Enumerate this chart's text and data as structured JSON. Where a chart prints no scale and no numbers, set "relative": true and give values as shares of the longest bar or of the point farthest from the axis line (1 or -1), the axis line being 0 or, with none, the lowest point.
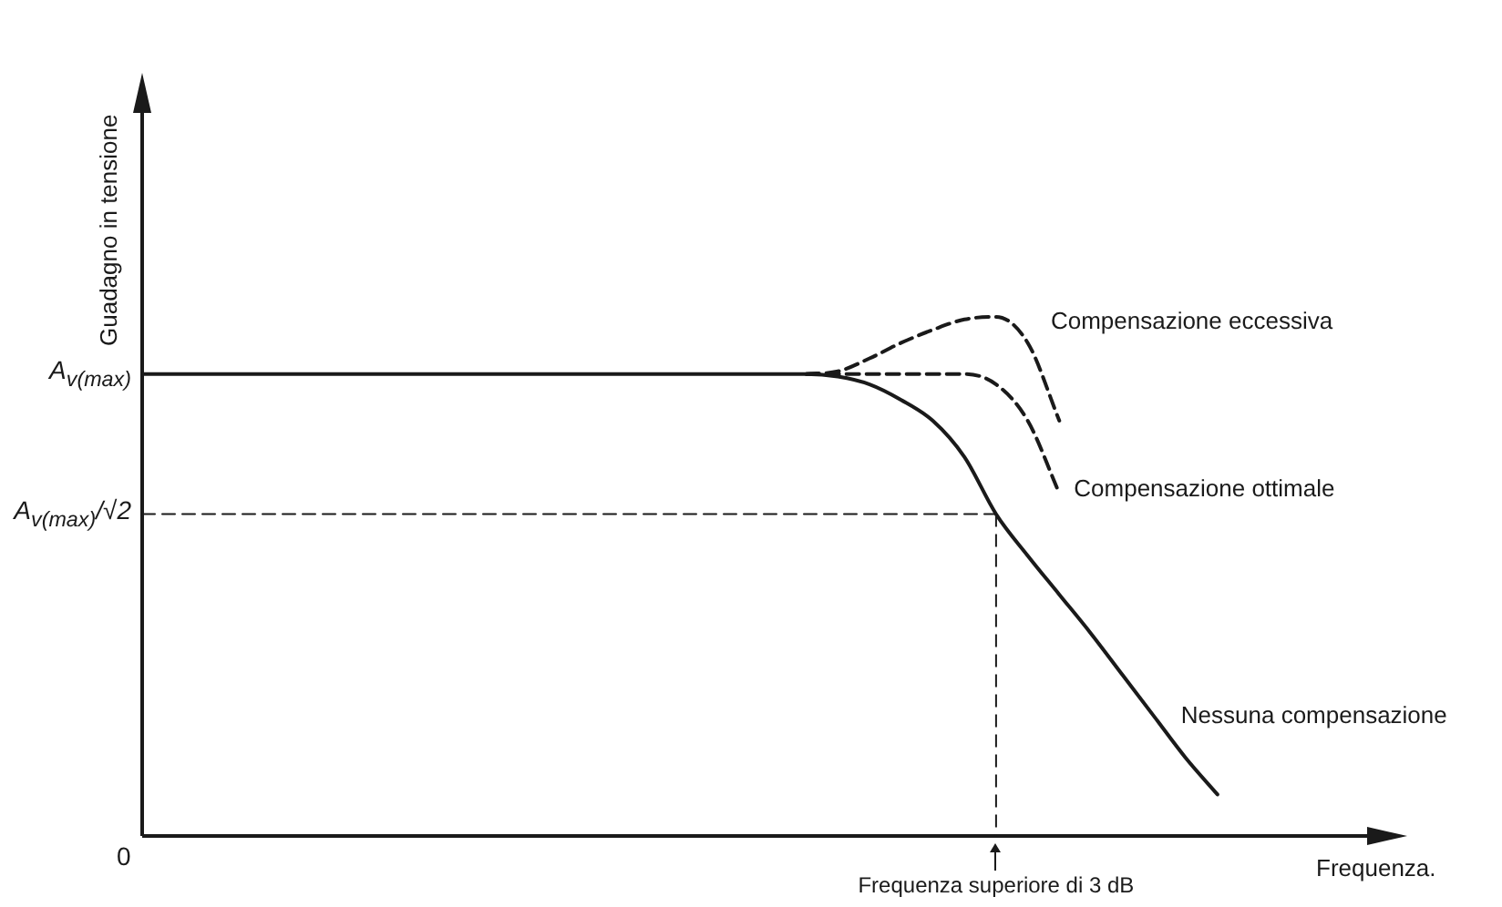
{
  "chart_data": {
    "type": "line",
    "relative": true,
    "tick_labels": false,
    "ylabel": "Guadagno in tensione",
    "xlabel": "Frequenza.",
    "legend": false,
    "marker": "none",
    "categories": [
      null,
      null,
      null,
      null,
      null,
      null,
      null,
      null,
      null,
      null,
      null,
      null,
      null,
      null,
      null,
      null,
      null,
      null,
      null,
      null,
      null,
      null,
      null,
      null,
      null,
      null,
      null,
      null,
      null,
      null,
      null,
      null,
      null,
      null,
      null,
      null,
      null,
      null,
      null,
      null,
      null
    ],
    "series": [
      {
        "name": "Nessuna compensazione",
        "color": "#1a1a1a",
        "line_style": "solid",
        "values": [
          0.89,
          0.89,
          0.89,
          0.89,
          0.89,
          0.89,
          0.89,
          0.89,
          0.89,
          0.89,
          0.89,
          0.89,
          0.89,
          0.89,
          0.89,
          0.89,
          0.89,
          0.89,
          0.89,
          0.89,
          0.89,
          0.89,
          0.885,
          0.87,
          0.84,
          0.8,
          0.73,
          0.62,
          0.54,
          0.465,
          0.39,
          0.31,
          0.23,
          0.15,
          0.08,
          null,
          null,
          null,
          null,
          null,
          null
        ]
      },
      {
        "name": "Compensazione eccessiva",
        "color": "#1a1a1a",
        "line_style": "dashed",
        "values": [
          null,
          null,
          null,
          null,
          null,
          null,
          null,
          null,
          null,
          null,
          null,
          null,
          null,
          null,
          null,
          null,
          null,
          null,
          null,
          null,
          null,
          0.89,
          0.895,
          0.92,
          0.95,
          0.975,
          0.995,
          1,
          0.95,
          0.8,
          null,
          null,
          null,
          null,
          null,
          null,
          null,
          null,
          null,
          null,
          null
        ]
      },
      {
        "name": "Compensazione ottimale",
        "color": "#1a1a1a",
        "line_style": "dashed",
        "values": [
          null,
          null,
          null,
          null,
          null,
          null,
          null,
          null,
          null,
          null,
          null,
          null,
          null,
          null,
          null,
          null,
          null,
          null,
          null,
          null,
          null,
          0.89,
          0.89,
          0.89,
          0.89,
          0.89,
          0.89,
          0.87,
          0.8,
          0.66,
          null,
          null,
          null,
          null,
          null,
          null,
          null,
          null,
          null,
          null,
          null
        ]
      },
      {
        "color": "#1a1a1a",
        "line_style": "dashed",
        "values": [
          0.62,
          0.62,
          0.62,
          0.62,
          0.62,
          0.62,
          0.62,
          0.62,
          0.62,
          0.62,
          0.62,
          0.62,
          0.62,
          0.62,
          0.62,
          0.62,
          0.62,
          0.62,
          0.62,
          0.62,
          0.62,
          0.62,
          0.62,
          0.62,
          0.62,
          0.62,
          0.62,
          0.62,
          null,
          null,
          null,
          null,
          null,
          null,
          null,
          null,
          null,
          null,
          null,
          null,
          null
        ]
      }
    ],
    "annotations": [
      "A$_{v(max)}$",
      "A$_{v(max)}$/√2",
      "0",
      "Frequenza superiore di 3 dB"
    ]
  }
}
